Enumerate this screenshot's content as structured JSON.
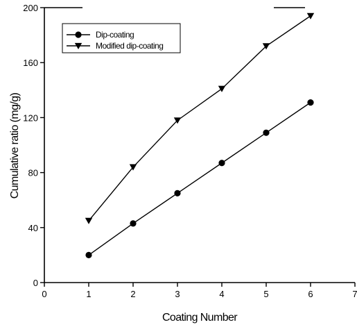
{
  "chart_data": {
    "type": "line",
    "title": "",
    "xlabel": "Coating Number",
    "ylabel": "Cumulative ratio (mg/g)",
    "xlim": [
      0,
      7
    ],
    "ylim": [
      0,
      200
    ],
    "xticks": [
      0,
      1,
      2,
      3,
      4,
      5,
      6,
      7
    ],
    "yticks": [
      0,
      40,
      80,
      120,
      160,
      200
    ],
    "grid": false,
    "legend_position": "top-left",
    "series": [
      {
        "name": "Dip-coating",
        "marker": "circle",
        "x": [
          1,
          2,
          3,
          4,
          5,
          6
        ],
        "y": [
          20,
          43,
          65,
          87,
          109,
          131
        ]
      },
      {
        "name": "Modified dip-coating",
        "marker": "triangle-down",
        "x": [
          1,
          2,
          3,
          4,
          5,
          6
        ],
        "y": [
          45,
          84,
          118,
          141,
          172,
          194
        ]
      }
    ]
  }
}
